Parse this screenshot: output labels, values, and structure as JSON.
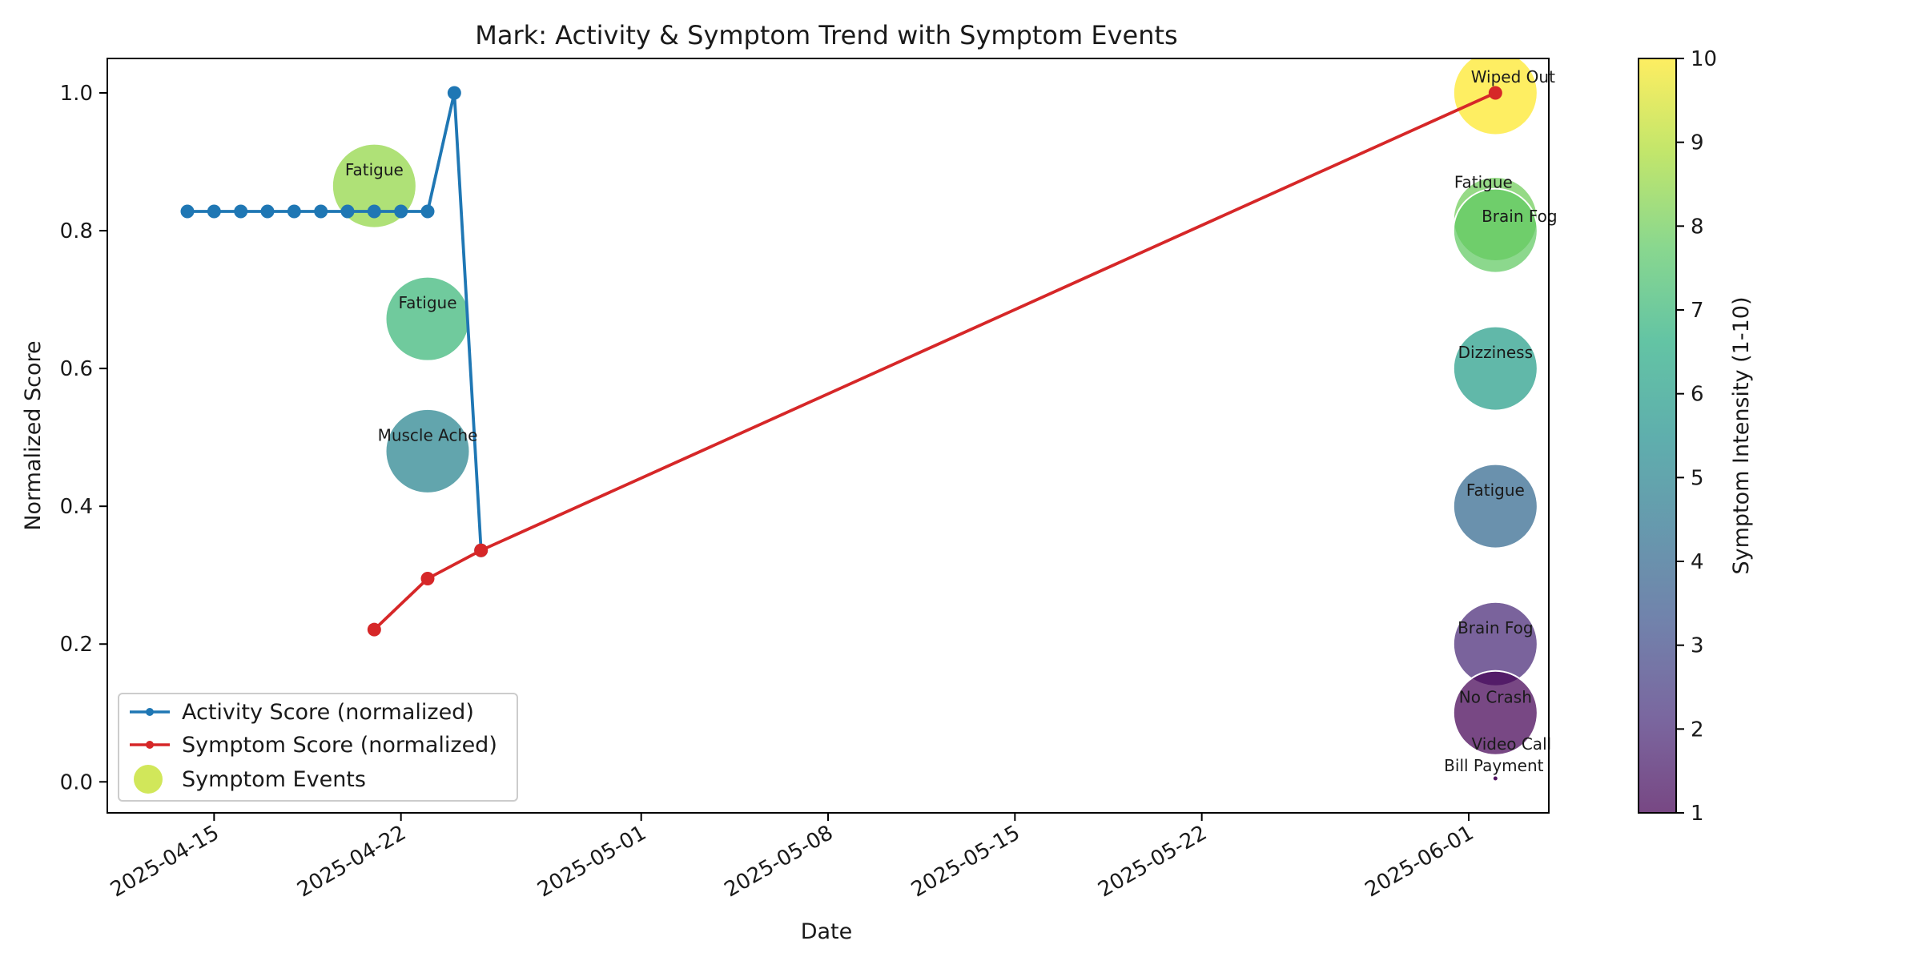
{
  "chart_data": {
    "type": "line",
    "title": "Mark: Activity & Symptom Trend with Symptom Events",
    "xlabel": "Date",
    "ylabel": "Normalized Score",
    "x_axis": {
      "type": "date",
      "range": [
        "2025-04-11",
        "2025-06-04"
      ],
      "tick_labels": [
        "2025-04-15",
        "2025-04-22",
        "2025-05-01",
        "2025-05-08",
        "2025-05-15",
        "2025-05-22",
        "2025-06-01"
      ]
    },
    "y_axis": {
      "range": [
        -0.045,
        1.05
      ],
      "tick_labels": [
        "0.0",
        "0.2",
        "0.4",
        "0.6",
        "0.8",
        "1.0"
      ]
    },
    "grid": false,
    "legend": {
      "placement": "lower-left",
      "entries": [
        "Activity Score (normalized)",
        "Symptom Score (normalized)",
        "Symptom Events"
      ]
    },
    "series": [
      {
        "name": "Activity Score (normalized)",
        "color": "#1f77b4",
        "points": [
          {
            "x": "2025-04-14",
            "y": 0.828
          },
          {
            "x": "2025-04-15",
            "y": 0.828
          },
          {
            "x": "2025-04-16",
            "y": 0.828
          },
          {
            "x": "2025-04-17",
            "y": 0.828
          },
          {
            "x": "2025-04-18",
            "y": 0.828
          },
          {
            "x": "2025-04-19",
            "y": 0.828
          },
          {
            "x": "2025-04-20",
            "y": 0.828
          },
          {
            "x": "2025-04-21",
            "y": 0.828
          },
          {
            "x": "2025-04-22",
            "y": 0.828
          },
          {
            "x": "2025-04-23",
            "y": 0.828
          },
          {
            "x": "2025-04-24",
            "y": 1.0
          },
          {
            "x": "2025-04-25",
            "y": 0.336
          }
        ]
      },
      {
        "name": "Symptom Score (normalized)",
        "color": "#d62728",
        "points": [
          {
            "x": "2025-04-21",
            "y": 0.221
          },
          {
            "x": "2025-04-23",
            "y": 0.295
          },
          {
            "x": "2025-04-25",
            "y": 0.336
          },
          {
            "x": "2025-06-02",
            "y": 1.0
          }
        ]
      }
    ],
    "symptom_events": [
      {
        "label": "Fatigue",
        "x": "2025-04-21",
        "y": 0.865,
        "intensity": 8.5
      },
      {
        "label": "Fatigue",
        "x": "2025-04-23",
        "y": 0.672,
        "intensity": 7
      },
      {
        "label": "Muscle Ache",
        "x": "2025-04-23",
        "y": 0.48,
        "intensity": 5
      },
      {
        "label": "Wiped Out",
        "x": "2025-06-02",
        "y": 1.0,
        "intensity": 10
      },
      {
        "label": "Fatigue",
        "x": "2025-06-02",
        "y": 0.817,
        "intensity": 8
      },
      {
        "label": "Brain Fog",
        "x": "2025-06-02",
        "y": 0.8,
        "intensity": 7.8
      },
      {
        "label": "Dizziness",
        "x": "2025-06-02",
        "y": 0.6,
        "intensity": 6
      },
      {
        "label": "Fatigue",
        "x": "2025-06-02",
        "y": 0.4,
        "intensity": 4
      },
      {
        "label": "Brain Fog",
        "x": "2025-06-02",
        "y": 0.2,
        "intensity": 2
      },
      {
        "label": "No Crash",
        "x": "2025-06-02",
        "y": 0.1,
        "intensity": 1
      },
      {
        "label": "Video Call",
        "x": "2025-06-02",
        "y": 0.005,
        "intensity": 0.2
      },
      {
        "label": "Bill Payment",
        "x": "2025-06-02",
        "y": 0.005,
        "intensity": 0.2
      }
    ],
    "colorbar": {
      "label": "Symptom Intensity (1-10)",
      "range": [
        1,
        10
      ],
      "tick_labels": [
        "1",
        "2",
        "3",
        "4",
        "5",
        "6",
        "7",
        "8",
        "9",
        "10"
      ],
      "colormap": "viridis"
    }
  }
}
